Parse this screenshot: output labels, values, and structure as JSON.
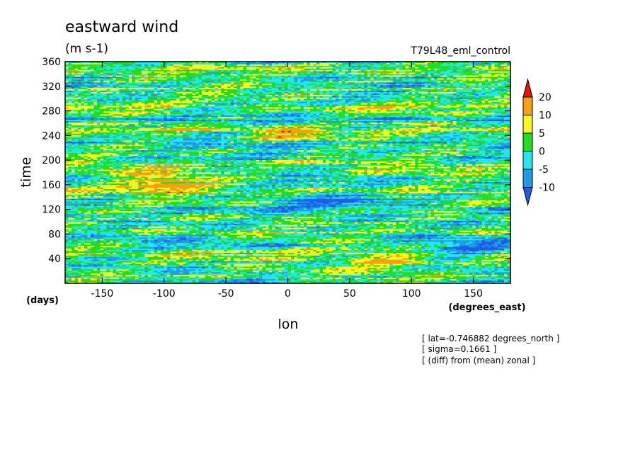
{
  "chart_data": {
    "type": "heatmap",
    "title": "eastward wind",
    "units": "(m s-1)",
    "run_label": "T79L48_eml_control",
    "xlabel": "lon",
    "xunit": "(degrees_east)",
    "ylabel": "time",
    "yunit": "(days)",
    "xlim": [
      -180,
      180
    ],
    "ylim": [
      0,
      360
    ],
    "xticks": [
      -150,
      -100,
      -50,
      0,
      50,
      100,
      150
    ],
    "yticks": [
      40,
      80,
      120,
      160,
      200,
      240,
      280,
      320,
      360
    ],
    "colorbar": {
      "levels": [
        -10,
        -5,
        0,
        5,
        10,
        20
      ],
      "colors": [
        "#1f5ee8",
        "#1e9ce6",
        "#22e8ee",
        "#22dd22",
        "#f8f820",
        "#f8a010",
        "#e81010"
      ]
    },
    "annotations": [
      "[ lat=-0.746882 degrees_north ]",
      "[ sigma=0.1661 ]",
      "[ (diff) from (mean) zonal ]"
    ],
    "grid": false
  }
}
